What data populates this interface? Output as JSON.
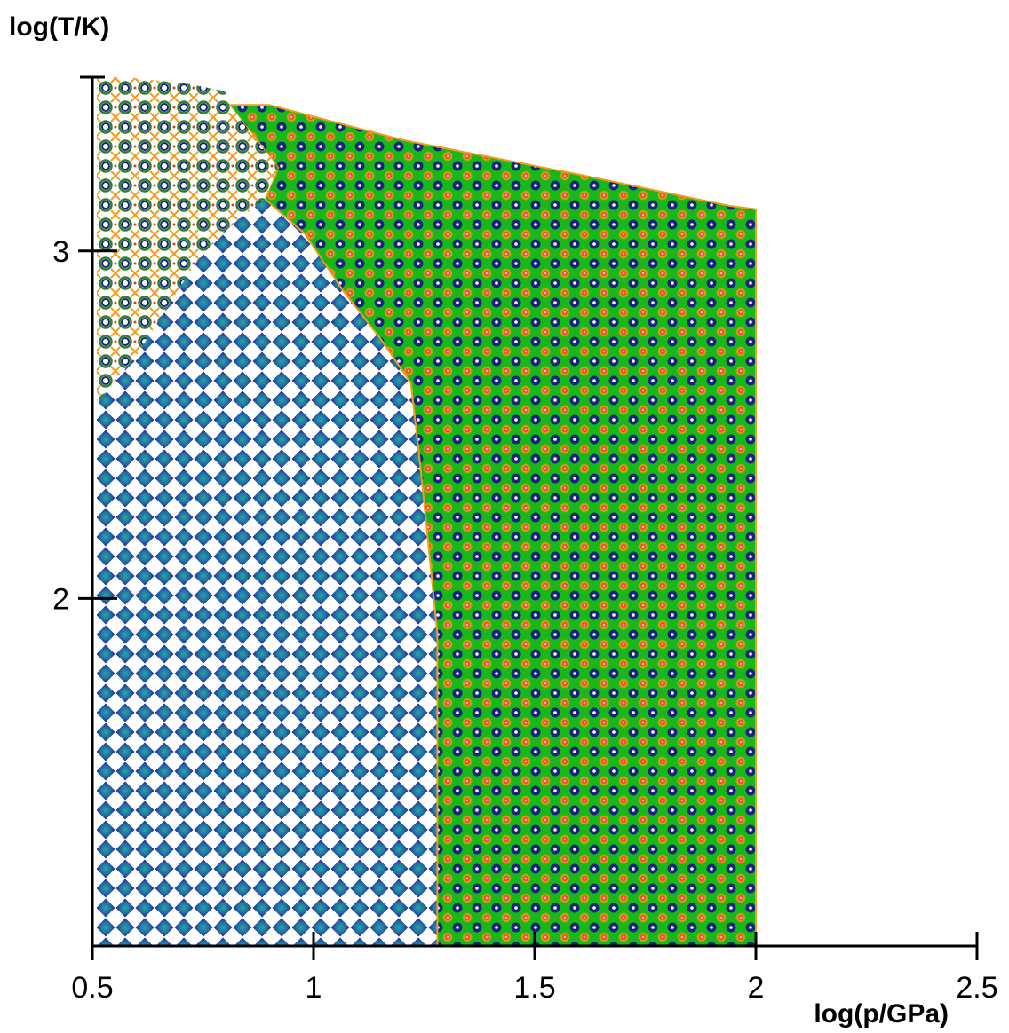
{
  "chart_data": {
    "type": "heatmap",
    "title": "",
    "xlabel": "log(p/GPa)",
    "ylabel": "log(T/K)",
    "xlim": [
      0.5,
      2.5
    ],
    "ylim": [
      1.0,
      3.5
    ],
    "x_ticks": [
      {
        "value": 0.5,
        "label": "0.5"
      },
      {
        "value": 1.0,
        "label": "1"
      },
      {
        "value": 1.5,
        "label": "1.5"
      },
      {
        "value": 2.0,
        "label": "2"
      },
      {
        "value": 2.5,
        "label": "2.5"
      }
    ],
    "y_ticks": [
      {
        "value": 2.0,
        "label": "2"
      },
      {
        "value": 3.0,
        "label": "3"
      }
    ],
    "grid": false,
    "legend": "none",
    "regions": [
      {
        "id": "low-pressure-phase",
        "pattern": "diamond-lattice",
        "colors": [
          "#2a1f8f",
          "#1f6fa8",
          "#2fa59a"
        ],
        "polygon": [
          [
            0.51,
            1.0
          ],
          [
            0.51,
            2.56
          ],
          [
            0.6,
            2.7
          ],
          [
            0.73,
            2.96
          ],
          [
            0.8,
            3.06
          ],
          [
            0.89,
            3.15
          ],
          [
            0.98,
            3.05
          ],
          [
            1.07,
            2.88
          ],
          [
            1.15,
            2.75
          ],
          [
            1.22,
            2.62
          ],
          [
            1.24,
            2.4
          ],
          [
            1.26,
            2.15
          ],
          [
            1.28,
            1.9
          ],
          [
            1.28,
            1.0
          ]
        ]
      },
      {
        "id": "high-pressure-phase",
        "pattern": "dot-lattice",
        "colors": [
          "#18b818",
          "#1a237e",
          "#f39b1d",
          "#e83a1a",
          "#ffffff"
        ],
        "polygon": [
          [
            1.28,
            1.0
          ],
          [
            1.28,
            1.9
          ],
          [
            1.26,
            2.15
          ],
          [
            1.24,
            2.4
          ],
          [
            1.22,
            2.62
          ],
          [
            1.15,
            2.75
          ],
          [
            1.07,
            2.88
          ],
          [
            0.98,
            3.05
          ],
          [
            0.89,
            3.15
          ],
          [
            0.92,
            3.24
          ],
          [
            0.81,
            3.42
          ],
          [
            0.9,
            3.42
          ],
          [
            1.2,
            3.32
          ],
          [
            1.6,
            3.22
          ],
          [
            1.94,
            3.13
          ],
          [
            2.0,
            3.12
          ],
          [
            2.0,
            1.0
          ]
        ]
      },
      {
        "id": "high-temperature-phase",
        "pattern": "ring-lattice",
        "colors": [
          "#1a237e",
          "#2e7d32",
          "#f39b1d",
          "#e83a1a"
        ],
        "polygon": [
          [
            0.51,
            2.56
          ],
          [
            0.51,
            3.5
          ],
          [
            0.58,
            3.5
          ],
          [
            0.72,
            3.48
          ],
          [
            0.8,
            3.46
          ],
          [
            0.81,
            3.42
          ],
          [
            0.92,
            3.24
          ],
          [
            0.89,
            3.15
          ],
          [
            0.8,
            3.06
          ],
          [
            0.73,
            2.96
          ],
          [
            0.6,
            2.7
          ]
        ]
      }
    ]
  }
}
